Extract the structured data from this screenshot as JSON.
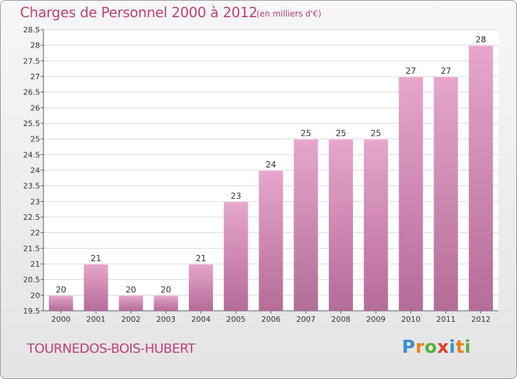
{
  "header": {
    "title": "Charges de Personnel 2000 à 2012",
    "subtitle": "(en milliers d'€)"
  },
  "footer": {
    "commune": "TOURNEDOS-BOIS-HUBERT",
    "logo_letters": [
      "P",
      "r",
      "o",
      "x",
      "i",
      "t",
      "i"
    ],
    "logo_colors": [
      "#3a8fd0",
      "#e8801e",
      "#57b33e",
      "#e23d2b",
      "#3a8fd0",
      "#e8801e",
      "#57b33e"
    ]
  },
  "colors": {
    "bar_light": "#e6a6cd",
    "bar_dark": "#b46c98",
    "text_accent": "#c0407a",
    "grid": "#d9d9d9"
  },
  "chart_data": {
    "type": "bar",
    "categories": [
      "2000",
      "2001",
      "2002",
      "2003",
      "2004",
      "2005",
      "2006",
      "2007",
      "2008",
      "2009",
      "2010",
      "2011",
      "2012"
    ],
    "values": [
      20,
      21,
      20,
      20,
      21,
      23,
      24,
      25,
      25,
      25,
      27,
      27,
      28
    ],
    "ylim": [
      19.5,
      28.5
    ],
    "yticks": [
      "19.5",
      "20",
      "20.5",
      "21",
      "21.5",
      "22",
      "22.5",
      "23",
      "23.5",
      "24",
      "24.5",
      "25",
      "25.5",
      "26",
      "26.5",
      "27",
      "27.5",
      "28",
      "28.5"
    ],
    "grid": true
  }
}
